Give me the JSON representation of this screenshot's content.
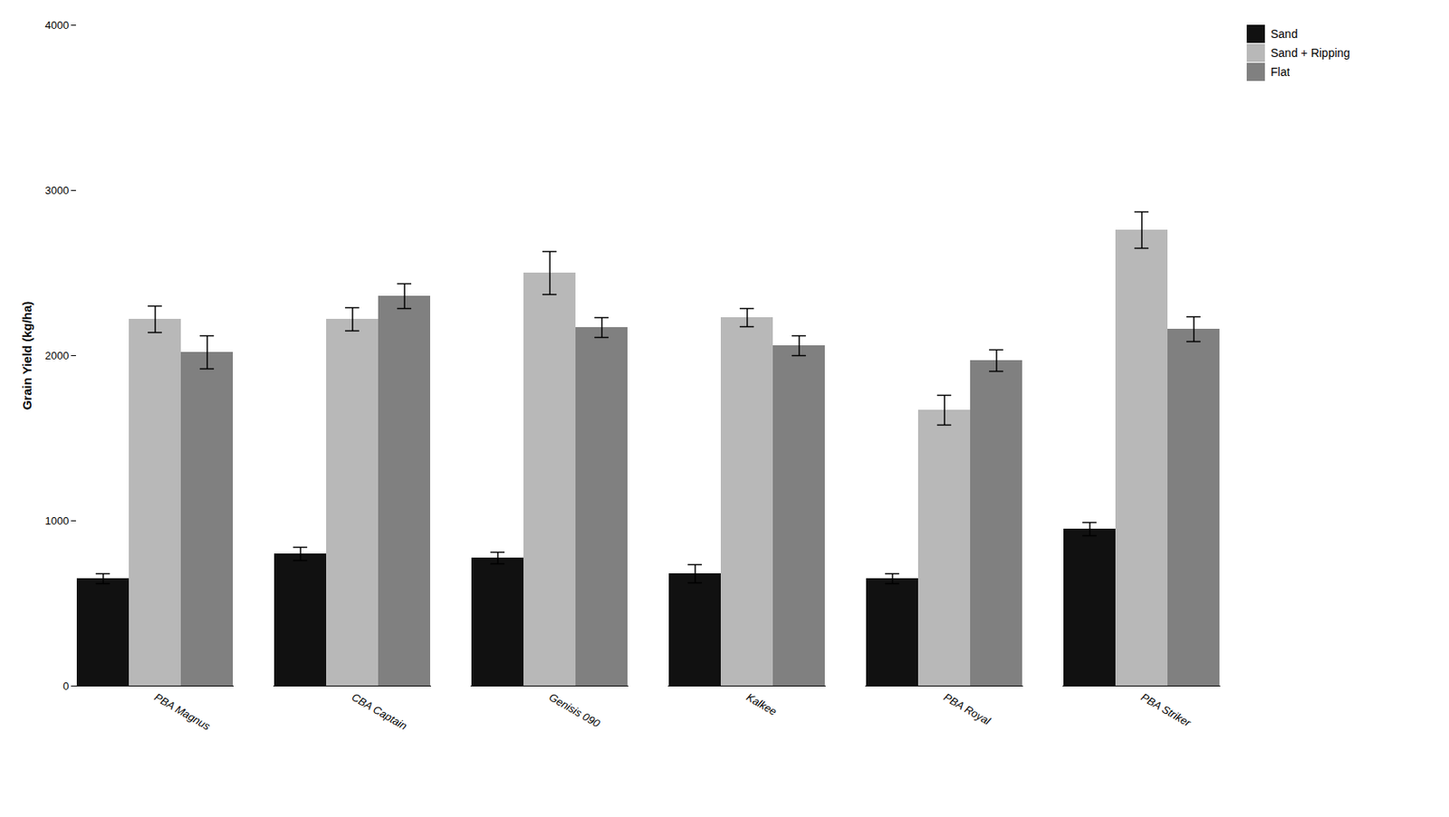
{
  "chart_data": {
    "type": "bar",
    "categories": [
      "PBA Magnus",
      "CBA Captain",
      "Genisis 090",
      "Kalkee",
      "PBA Royal",
      "PBA Striker"
    ],
    "series": [
      {
        "name": "Sand",
        "color": "#111111",
        "values": [
          650,
          800,
          775,
          680,
          650,
          950
        ],
        "errors": [
          30,
          40,
          35,
          55,
          30,
          40
        ]
      },
      {
        "name": "Sand + Ripping",
        "color": "#b8b8b8",
        "values": [
          2220,
          2220,
          2500,
          2230,
          1670,
          2760
        ],
        "errors": [
          80,
          70,
          130,
          55,
          90,
          110
        ]
      },
      {
        "name": "Flat",
        "color": "#808080",
        "values": [
          2020,
          2360,
          2170,
          2060,
          1970,
          2160
        ],
        "errors": [
          100,
          75,
          60,
          60,
          65,
          75
        ]
      }
    ],
    "ylabel": "Grain Yield (kg/ha)",
    "ylim": [
      0,
      4000
    ],
    "yticks": [
      0,
      1000,
      2000,
      3000,
      4000
    ],
    "grid": false,
    "legend": "right"
  }
}
